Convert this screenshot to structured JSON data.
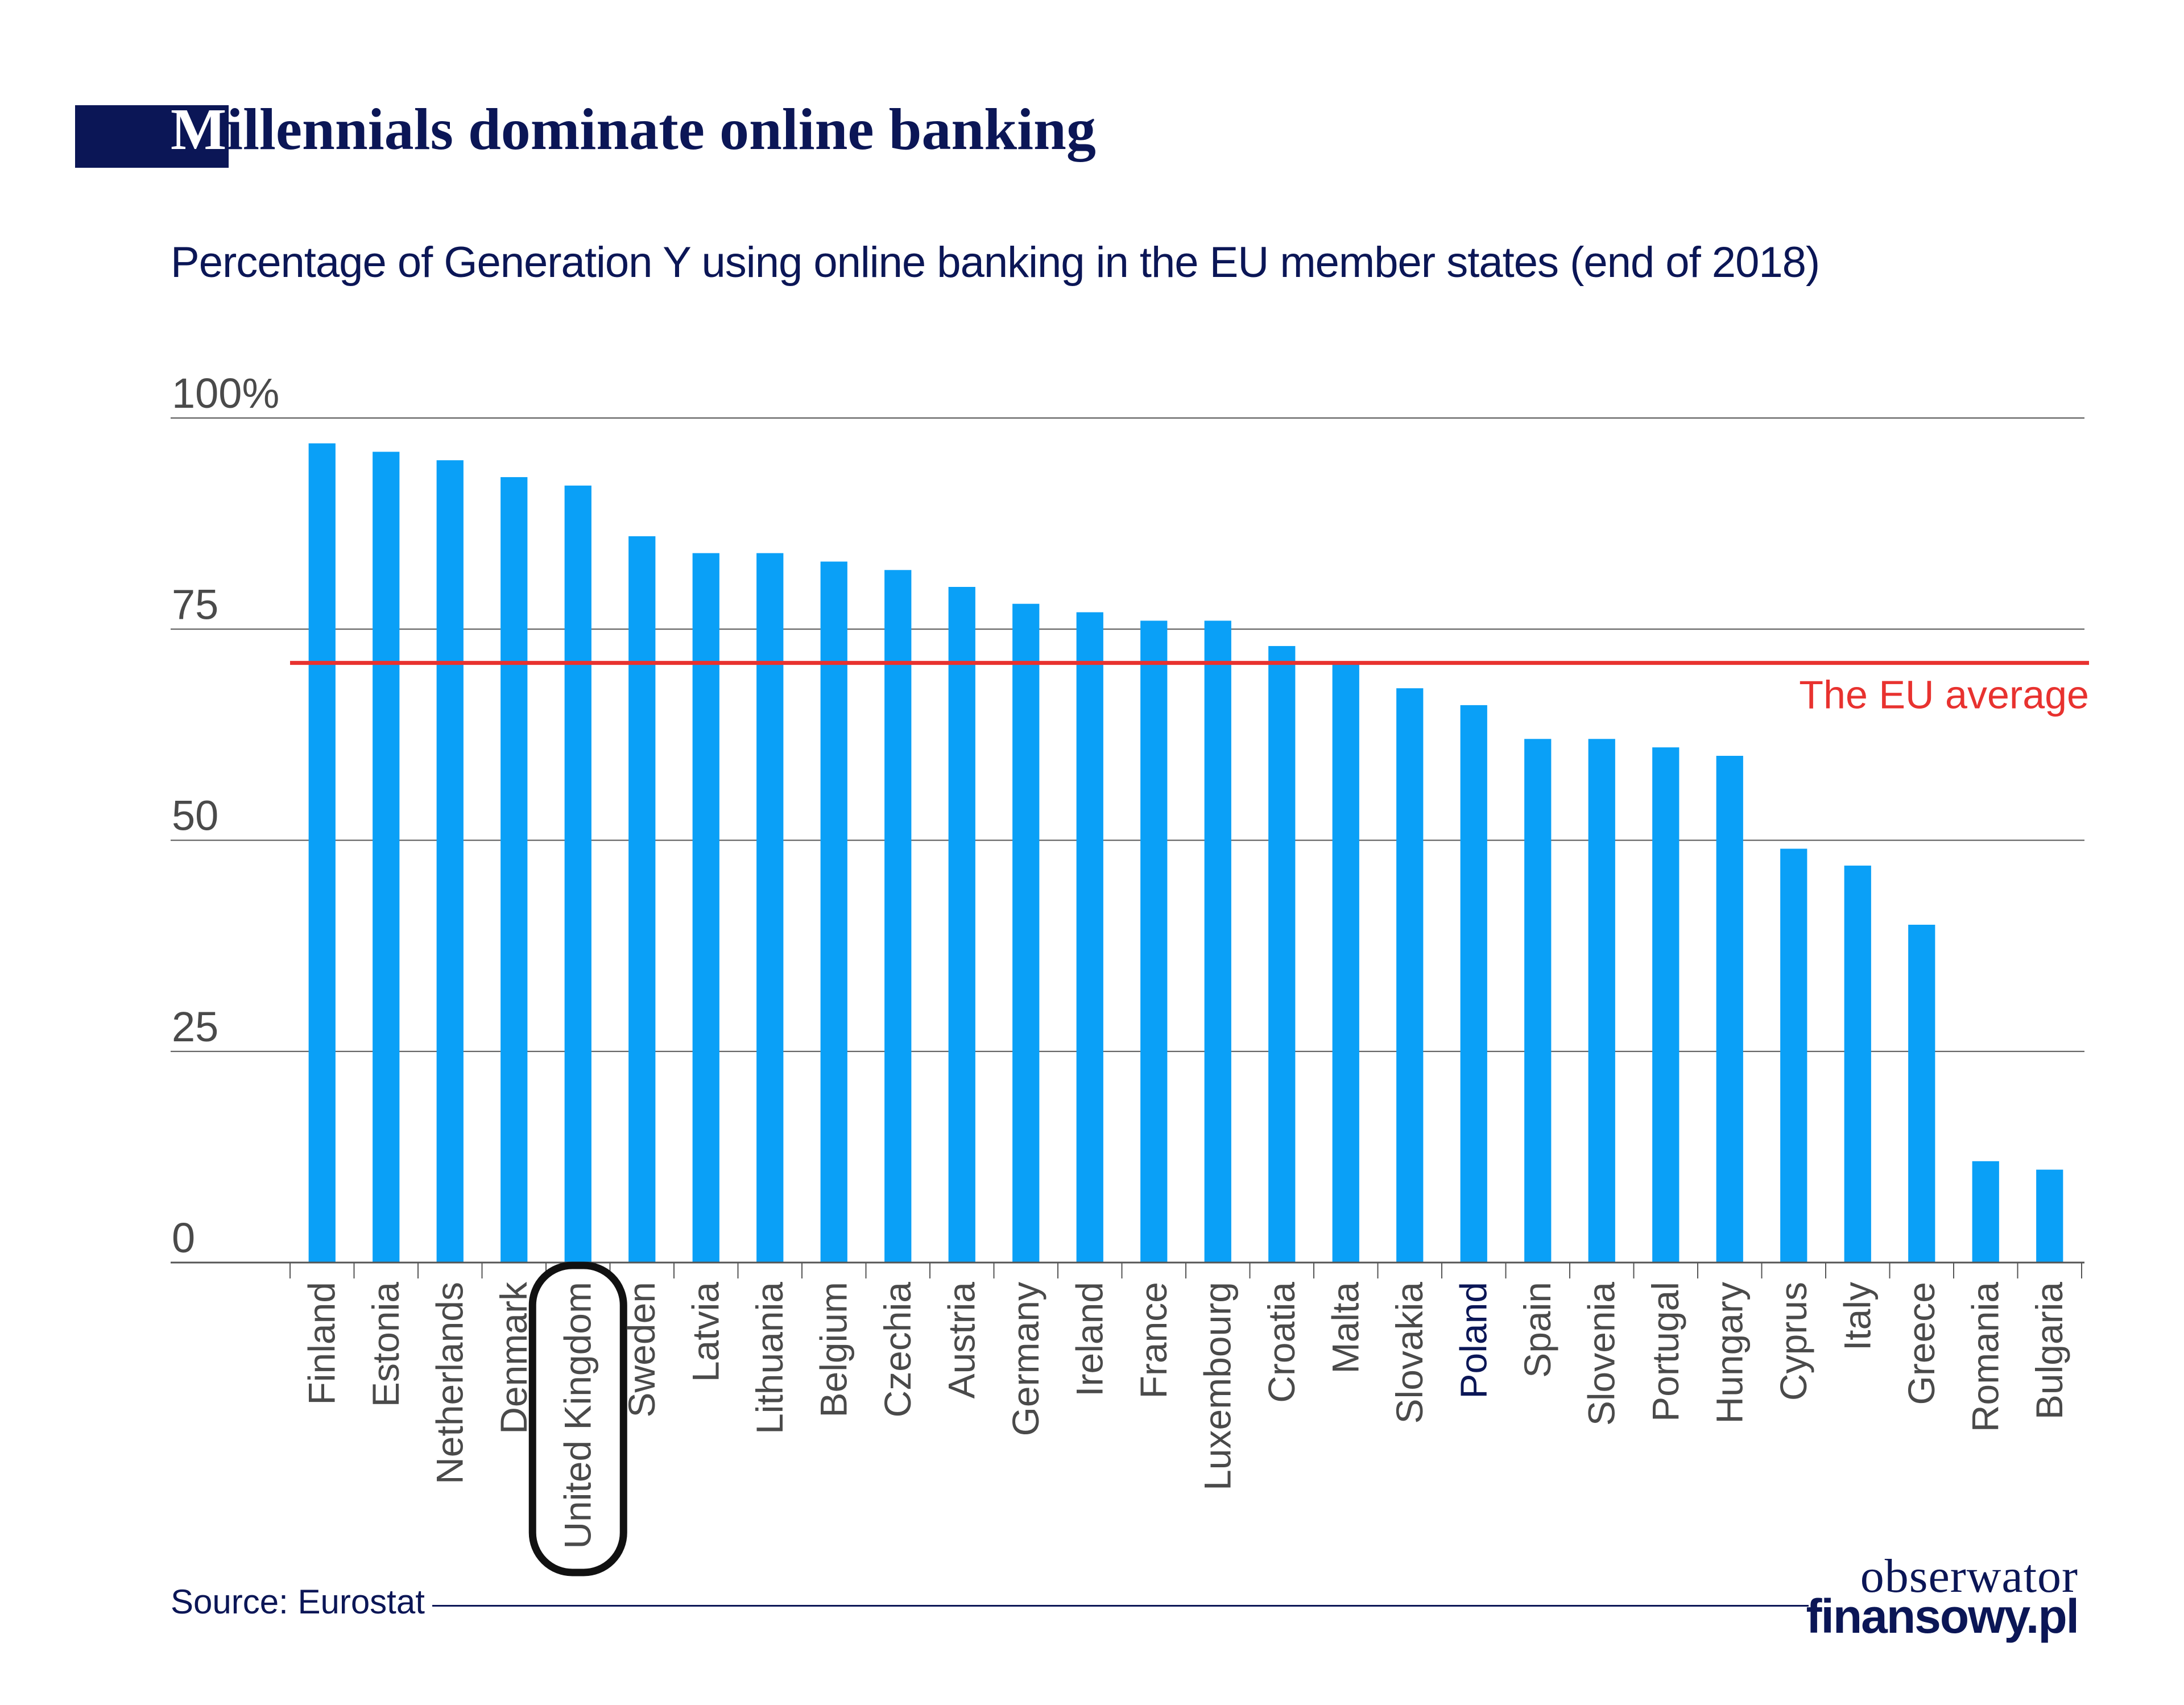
{
  "header": {
    "title_first": "M",
    "title_rest": "illennials dominate online banking",
    "subtitle": "Percentage of Generation Y using online banking in the EU member states (end of 2018)"
  },
  "chart_data": {
    "type": "bar",
    "title": "Millennials dominate online banking",
    "subtitle": "Percentage of Generation Y using online banking in the EU member states (end of 2018)",
    "categories": [
      "Finland",
      "Estonia",
      "Netherlands",
      "Denmark",
      "United Kingdom",
      "Sweden",
      "Latvia",
      "Lithuania",
      "Belgium",
      "Czechia",
      "Austria",
      "Germany",
      "Ireland",
      "France",
      "Luxembourg",
      "Croatia",
      "Malta",
      "Slovakia",
      "Poland",
      "Spain",
      "Slovenia",
      "Portugal",
      "Hungary",
      "Cyprus",
      "Italy",
      "Greece",
      "Romania",
      "Bulgaria"
    ],
    "values": [
      97,
      96,
      95,
      93,
      92,
      86,
      84,
      84,
      83,
      82,
      80,
      78,
      77,
      76,
      76,
      73,
      71,
      68,
      66,
      62,
      62,
      61,
      60,
      49,
      47,
      40,
      12,
      11
    ],
    "ylim": [
      0,
      100
    ],
    "yticks": [
      0,
      25,
      50,
      75,
      100
    ],
    "ytick_labels": [
      "0",
      "25",
      "50",
      "75",
      "100%"
    ],
    "highlight_category": "Poland",
    "circled_category": "United Kingdom",
    "reference_line": {
      "label": "The EU average",
      "value": 71,
      "color": "#e8322f"
    },
    "bar_color": "#0aa0f7",
    "grid": true
  },
  "footer": {
    "source": "Source: Eurostat",
    "logo_line1": "obserwator",
    "logo_line2": "finansowy.pl"
  },
  "colors": {
    "navy": "#0b1656",
    "bar": "#0aa0f7",
    "average": "#e8322f"
  }
}
